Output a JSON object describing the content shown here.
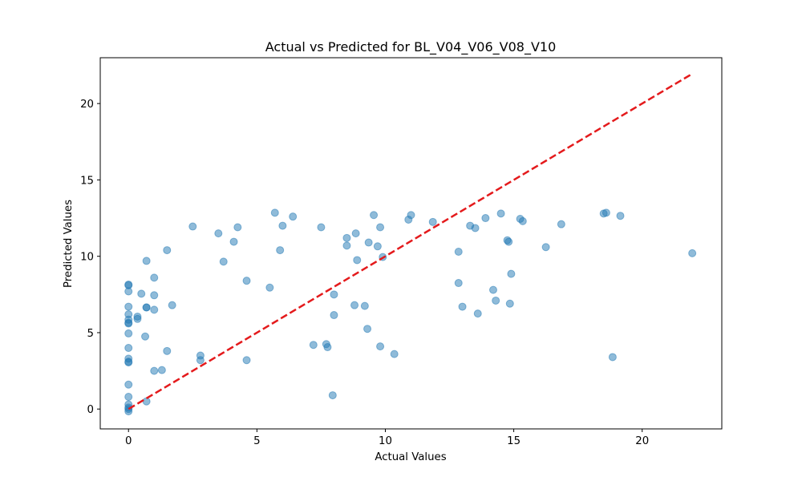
{
  "chart_data": {
    "type": "scatter",
    "title": "Actual vs Predicted for BL_V04_V06_V08_V10",
    "xlabel": "Actual Values",
    "ylabel": "Predicted Values",
    "xlim": [
      -1.1,
      23.1
    ],
    "ylim": [
      -1.3,
      23.0
    ],
    "xticks": [
      0,
      5,
      10,
      15,
      20
    ],
    "yticks": [
      0,
      5,
      10,
      15,
      20
    ],
    "grid": false,
    "legend": "none",
    "colors": {
      "points": "#1f77b4",
      "reference_line": "#e41a1c",
      "axes": "#000000"
    },
    "series": [
      {
        "x": [
          0,
          0,
          0,
          0,
          0,
          0,
          0,
          0,
          0,
          0,
          0,
          0,
          0,
          0,
          0,
          0,
          0,
          0,
          0,
          0.35,
          0.35,
          0.5,
          0.65,
          0.7,
          0.7,
          0.7,
          0.7,
          1.0,
          1.0,
          1.0,
          1.0,
          1.3,
          1.5,
          1.5,
          1.7,
          2.5,
          2.8,
          2.8,
          3.5,
          3.7,
          4.1,
          4.25,
          4.6,
          4.6,
          5.5,
          5.7,
          5.9,
          6.0,
          6.4,
          7.2,
          7.5,
          7.7,
          7.75,
          7.95,
          8.0,
          8.0,
          8.5,
          8.5,
          8.8,
          8.85,
          8.9,
          9.2,
          9.3,
          9.35,
          9.55,
          9.7,
          9.8,
          9.8,
          9.9,
          10.35,
          10.9,
          11.0,
          11.85,
          12.85,
          12.85,
          13.0,
          13.3,
          13.5,
          13.6,
          13.9,
          14.2,
          14.3,
          14.5,
          14.75,
          14.8,
          14.85,
          14.9,
          15.25,
          15.35,
          16.25,
          16.85,
          18.5,
          18.6,
          18.85,
          19.15,
          21.95
        ],
        "y": [
          8.15,
          8.1,
          7.7,
          6.7,
          6.2,
          5.85,
          5.65,
          5.6,
          4.95,
          4.0,
          3.3,
          3.1,
          3.05,
          1.6,
          0.8,
          0.3,
          0.1,
          0.0,
          -0.15,
          6.05,
          5.9,
          7.55,
          4.75,
          9.7,
          6.65,
          6.65,
          0.5,
          8.6,
          7.45,
          6.5,
          2.5,
          2.55,
          10.4,
          3.8,
          6.8,
          11.95,
          3.5,
          3.2,
          11.5,
          9.65,
          10.95,
          11.9,
          8.4,
          3.2,
          7.95,
          12.85,
          10.4,
          12.0,
          12.6,
          4.2,
          11.9,
          4.25,
          4.05,
          0.9,
          7.5,
          6.15,
          11.2,
          10.7,
          6.8,
          11.5,
          9.75,
          6.75,
          5.25,
          10.9,
          12.7,
          10.65,
          11.9,
          4.1,
          9.95,
          3.6,
          12.4,
          12.7,
          12.25,
          10.3,
          8.25,
          6.7,
          12.0,
          11.85,
          6.25,
          12.5,
          7.8,
          7.1,
          12.8,
          11.05,
          10.95,
          6.9,
          8.85,
          12.45,
          12.3,
          10.6,
          12.1,
          12.8,
          12.85,
          3.4,
          12.65,
          10.2
        ]
      }
    ],
    "reference_line": {
      "x": [
        0,
        21.95
      ],
      "y": [
        0,
        21.95
      ],
      "style": "dashed"
    }
  }
}
